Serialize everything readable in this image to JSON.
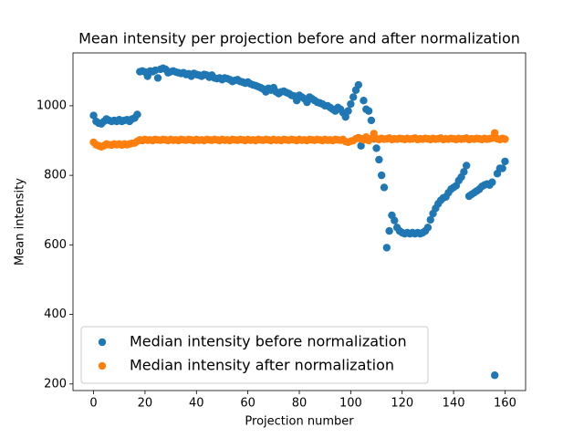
{
  "chart_data": {
    "type": "scatter",
    "title": "Mean intensity per projection before and after normalization",
    "x_label": "Projection number",
    "y_label": "Mean intensity",
    "x": [
      0,
      1,
      2,
      3,
      4,
      5,
      6,
      7,
      8,
      9,
      10,
      11,
      12,
      13,
      14,
      15,
      16,
      17,
      18,
      19,
      20,
      21,
      22,
      23,
      24,
      25,
      26,
      27,
      28,
      29,
      30,
      31,
      32,
      33,
      34,
      35,
      36,
      37,
      38,
      39,
      40,
      41,
      42,
      43,
      44,
      45,
      46,
      47,
      48,
      49,
      50,
      51,
      52,
      53,
      54,
      55,
      56,
      57,
      58,
      59,
      60,
      61,
      62,
      63,
      64,
      65,
      66,
      67,
      68,
      69,
      70,
      71,
      72,
      73,
      74,
      75,
      76,
      77,
      78,
      79,
      80,
      81,
      82,
      83,
      84,
      85,
      86,
      87,
      88,
      89,
      90,
      91,
      92,
      93,
      94,
      95,
      96,
      97,
      98,
      99,
      100,
      101,
      102,
      103,
      104,
      105,
      106,
      107,
      108,
      109,
      110,
      111,
      112,
      113,
      114,
      115,
      116,
      117,
      118,
      119,
      120,
      121,
      122,
      123,
      124,
      125,
      126,
      127,
      128,
      129,
      130,
      131,
      132,
      133,
      134,
      135,
      136,
      137,
      138,
      139,
      140,
      141,
      142,
      143,
      144,
      145,
      146,
      147,
      148,
      149,
      150,
      151,
      152,
      153,
      154,
      155,
      156,
      157,
      158,
      159,
      160
    ],
    "series": [
      {
        "name": "Median intensity before normalization",
        "color": "#1f77b4",
        "values": [
          972,
          955,
          950,
          948,
          955,
          962,
          958,
          955,
          958,
          955,
          960,
          955,
          958,
          960,
          955,
          962,
          965,
          975,
          1098,
          1100,
          1097,
          1085,
          1100,
          1098,
          1102,
          1080,
          1105,
          1108,
          1105,
          1095,
          1098,
          1100,
          1097,
          1095,
          1093,
          1095,
          1090,
          1092,
          1085,
          1093,
          1090,
          1088,
          1085,
          1090,
          1088,
          1082,
          1088,
          1080,
          1078,
          1080,
          1075,
          1080,
          1078,
          1075,
          1070,
          1073,
          1075,
          1070,
          1068,
          1065,
          1068,
          1063,
          1060,
          1058,
          1055,
          1052,
          1048,
          1040,
          1050,
          1045,
          1052,
          1040,
          1035,
          1040,
          1042,
          1038,
          1035,
          1030,
          1028,
          1015,
          1030,
          1025,
          1020,
          1010,
          1025,
          1020,
          1015,
          1010,
          1008,
          1005,
          1000,
          1000,
          995,
          990,
          985,
          995,
          990,
          980,
          968,
          985,
          1005,
          1025,
          1045,
          1060,
          885,
          1015,
          990,
          985,
          958,
          905,
          878,
          845,
          800,
          765,
          592,
          640,
          685,
          670,
          650,
          640,
          635,
          632,
          635,
          632,
          635,
          632,
          635,
          632,
          635,
          640,
          650,
          672,
          690,
          705,
          718,
          728,
          735,
          738,
          750,
          760,
          765,
          770,
          785,
          795,
          810,
          828,
          740,
          745,
          750,
          755,
          760,
          768,
          772,
          775,
          772,
          780,
          225,
          805,
          820,
          820,
          840
        ]
      },
      {
        "name": "Median intensity after normalization",
        "color": "#ff7f0e",
        "values": [
          895,
          888,
          885,
          882,
          885,
          890,
          888,
          887,
          890,
          888,
          890,
          887,
          890,
          888,
          890,
          892,
          893,
          898,
          902,
          900,
          903,
          901,
          902,
          900,
          903,
          902,
          901,
          903,
          902,
          900,
          903,
          901,
          902,
          900,
          903,
          902,
          901,
          903,
          902,
          900,
          903,
          901,
          902,
          900,
          903,
          902,
          901,
          903,
          902,
          900,
          903,
          901,
          902,
          900,
          903,
          902,
          901,
          903,
          902,
          900,
          903,
          901,
          902,
          900,
          903,
          902,
          901,
          903,
          902,
          900,
          903,
          901,
          902,
          900,
          903,
          902,
          901,
          903,
          902,
          900,
          903,
          901,
          902,
          900,
          903,
          902,
          901,
          903,
          902,
          900,
          903,
          901,
          902,
          900,
          903,
          902,
          901,
          903,
          897,
          895,
          898,
          900,
          905,
          908,
          905,
          902,
          910,
          900,
          905,
          920,
          905,
          903,
          906,
          904,
          905,
          907,
          903,
          905,
          904,
          906,
          905,
          903,
          906,
          904,
          905,
          907,
          903,
          905,
          904,
          906,
          905,
          903,
          906,
          904,
          905,
          907,
          903,
          905,
          904,
          906,
          905,
          903,
          906,
          904,
          905,
          907,
          903,
          905,
          904,
          906,
          905,
          903,
          906,
          904,
          905,
          907,
          922,
          905,
          903,
          906,
          904
        ]
      }
    ],
    "xlim": [
      -8,
      168
    ],
    "ylim": [
      181,
      1152
    ],
    "xticks": [
      0,
      20,
      40,
      60,
      80,
      100,
      120,
      140,
      160
    ],
    "yticks": [
      200,
      400,
      600,
      800,
      1000
    ],
    "grid": false,
    "legend": "lower left"
  }
}
